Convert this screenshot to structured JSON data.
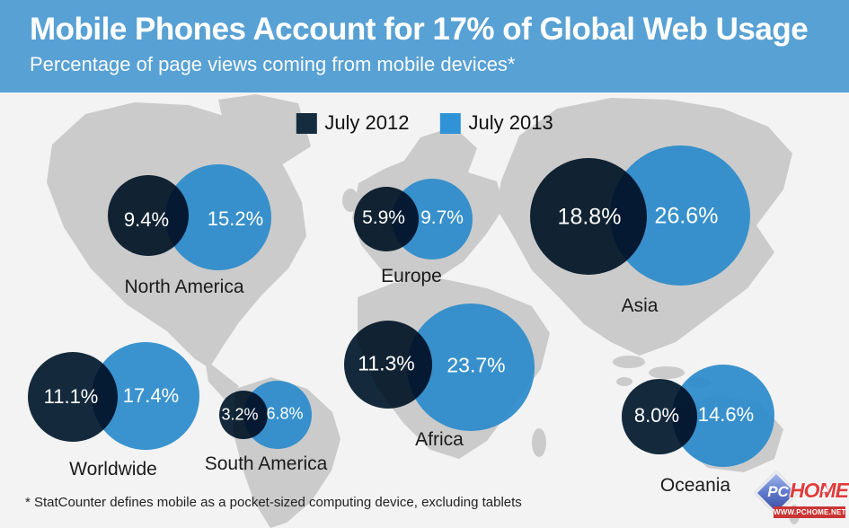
{
  "header": {
    "title": "Mobile Phones Account for 17% of Global Web Usage",
    "subtitle": "Percentage of page views coming from mobile devices*",
    "background_color": "#58A1D4"
  },
  "legend": {
    "items": [
      {
        "label": "July 2012",
        "color": "#152C3F"
      },
      {
        "label": "July 2013",
        "color": "#3093D8"
      }
    ]
  },
  "footnote": "* StatCounter defines mobile as a pocket-sized computing device, excluding tablets",
  "watermark": {
    "prefix": "PC",
    "suffix": "HOME",
    "url": "WWW.PCHOME.NET"
  },
  "chart_data": {
    "type": "bubble",
    "title": "Mobile Phones Account for 17% of Global Web Usage",
    "subtitle": "Percentage of page views coming from mobile devices*",
    "unit": "%",
    "legend_position": "top-center",
    "series_names": [
      "July 2012",
      "July 2013"
    ],
    "colors": {
      "july_2012": "#152C3F",
      "july_2013": "#2E8CCB",
      "map_land": "#CBCBCB",
      "map_background": "#F3F3F3"
    },
    "regions": [
      {
        "name": "North America",
        "july_2012": 9.4,
        "july_2013": 15.2
      },
      {
        "name": "Europe",
        "july_2012": 5.9,
        "july_2013": 9.7
      },
      {
        "name": "Asia",
        "july_2012": 18.8,
        "july_2013": 26.6
      },
      {
        "name": "Worldwide",
        "july_2012": 11.1,
        "july_2013": 17.4
      },
      {
        "name": "South America",
        "july_2012": 3.2,
        "july_2013": 6.8
      },
      {
        "name": "Africa",
        "july_2012": 11.3,
        "july_2013": 23.7
      },
      {
        "name": "Oceania",
        "july_2012": 8.0,
        "july_2013": 14.6
      }
    ]
  }
}
